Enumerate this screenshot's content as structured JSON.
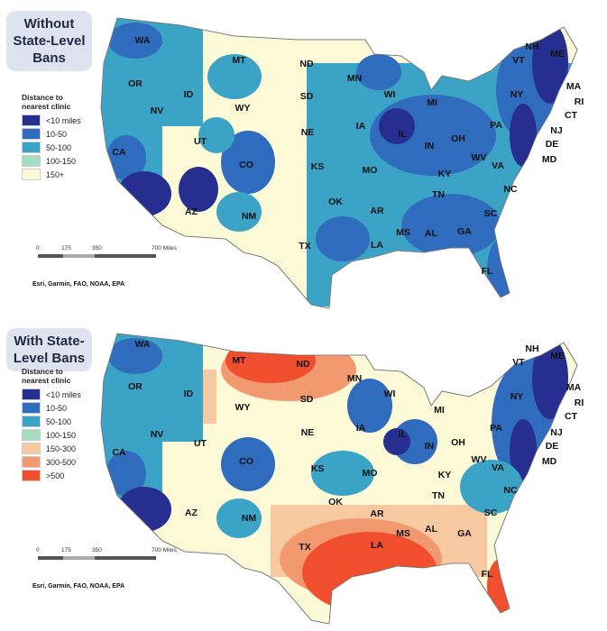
{
  "colors": {
    "lt10": "#262f8f",
    "10_50": "#2f6cbe",
    "50_100": "#3aa3c6",
    "100_150": "#a6dcc0",
    "150plus": "#fbf9d6",
    "150_300": "#f7c9a0",
    "300_500": "#f39970",
    "gt500": "#f04e2c",
    "land_bg": "#fbf9d6",
    "water": "#ffffff"
  },
  "panels": [
    {
      "title": "Without State-Level Bans",
      "title_lines": [
        "Without",
        "State-Level",
        "Bans"
      ],
      "legend_title": "Distance to nearest clinic",
      "legend_title_lines": [
        "Distance to",
        "nearest clinic"
      ],
      "legend": [
        {
          "label": "<10 miles",
          "color_key": "lt10"
        },
        {
          "label": "10-50",
          "color_key": "10_50"
        },
        {
          "label": "50-100",
          "color_key": "50_100"
        },
        {
          "label": "100-150",
          "color_key": "100_150"
        },
        {
          "label": "150+",
          "color_key": "150plus"
        }
      ],
      "scale_ticks": [
        "0",
        "175",
        "350",
        "700 Miles"
      ],
      "credit": "Esri, Garmin, FAO, NOAA, EPA",
      "states": [
        "WA",
        "OR",
        "CA",
        "NV",
        "ID",
        "MT",
        "WY",
        "UT",
        "AZ",
        "CO",
        "NM",
        "ND",
        "SD",
        "NE",
        "KS",
        "OK",
        "TX",
        "MN",
        "IA",
        "MO",
        "AR",
        "LA",
        "WI",
        "IL",
        "MS",
        "AL",
        "MI",
        "IN",
        "KY",
        "TN",
        "OH",
        "GA",
        "FL",
        "PA",
        "WV",
        "VA",
        "NC",
        "SC",
        "NY",
        "VT",
        "NH",
        "ME",
        "MA",
        "RI",
        "CT",
        "NJ",
        "DE",
        "MD"
      ]
    },
    {
      "title": "With State-Level Bans",
      "title_lines": [
        "With State-",
        "Level Bans"
      ],
      "legend_title": "Distance to nearest clinic",
      "legend_title_lines": [
        "Distance to",
        "nearest clinic"
      ],
      "legend": [
        {
          "label": "<10 miles",
          "color_key": "lt10"
        },
        {
          "label": "10-50",
          "color_key": "10_50"
        },
        {
          "label": "50-100",
          "color_key": "50_100"
        },
        {
          "label": "100-150",
          "color_key": "100_150"
        },
        {
          "label": "150-300",
          "color_key": "150_300"
        },
        {
          "label": "300-500",
          "color_key": "300_500"
        },
        {
          "label": ">500",
          "color_key": "gt500"
        }
      ],
      "scale_ticks": [
        "0",
        "175",
        "350",
        "700 Miles"
      ],
      "credit": "Esri, Garmin, FAO, NOAA, EPA",
      "states": [
        "WA",
        "OR",
        "CA",
        "NV",
        "ID",
        "MT",
        "WY",
        "UT",
        "AZ",
        "CO",
        "NM",
        "ND",
        "SD",
        "NE",
        "KS",
        "OK",
        "TX",
        "MN",
        "IA",
        "MO",
        "AR",
        "LA",
        "WI",
        "IL",
        "MS",
        "AL",
        "MI",
        "IN",
        "KY",
        "TN",
        "OH",
        "GA",
        "FL",
        "PA",
        "WV",
        "VA",
        "NC",
        "SC",
        "NY",
        "VT",
        "NH",
        "ME",
        "MA",
        "RI",
        "CT",
        "NJ",
        "DE",
        "MD"
      ]
    }
  ]
}
